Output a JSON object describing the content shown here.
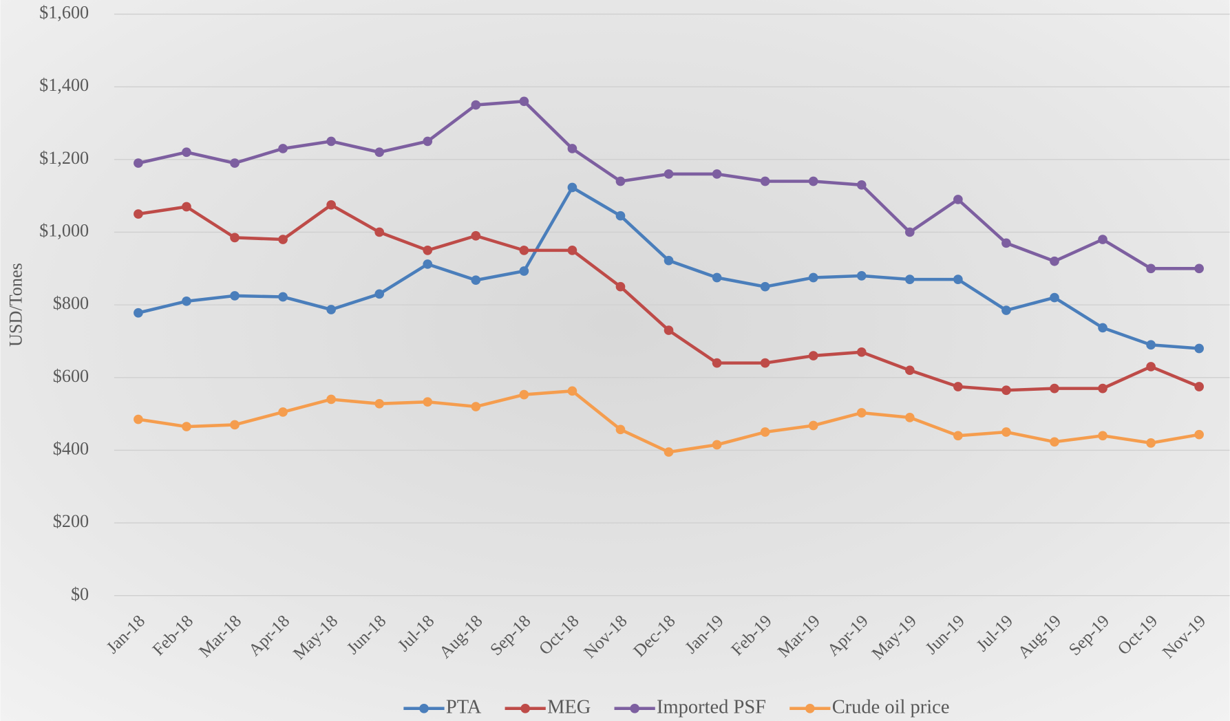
{
  "chart_data": {
    "type": "line",
    "y_label": "USD/Tones",
    "categories": [
      "Jan-18",
      "Feb-18",
      "Mar-18",
      "Apr-18",
      "May-18",
      "Jun-18",
      "Jul-18",
      "Aug-18",
      "Sep-18",
      "Oct-18",
      "Nov-18",
      "Dec-18",
      "Jan-19",
      "Feb-19",
      "Mar-19",
      "Apr-19",
      "May-19",
      "Jun-19",
      "Jul-19",
      "Aug-19",
      "Sep-19",
      "Oct-19",
      "Nov-19"
    ],
    "series": [
      {
        "name": "PTA",
        "color": "#4a7ebb",
        "values": [
          778,
          810,
          825,
          822,
          787,
          830,
          912,
          868,
          893,
          1123,
          1045,
          922,
          875,
          850,
          875,
          880,
          870,
          870,
          785,
          820,
          737,
          690,
          680
        ]
      },
      {
        "name": "MEG",
        "color": "#be4b48",
        "values": [
          1050,
          1070,
          985,
          980,
          1075,
          1000,
          950,
          990,
          950,
          950,
          850,
          730,
          640,
          640,
          660,
          670,
          620,
          575,
          565,
          570,
          570,
          630,
          575
        ]
      },
      {
        "name": "Imported PSF",
        "color": "#7d5fa0",
        "values": [
          1190,
          1220,
          1190,
          1230,
          1250,
          1220,
          1250,
          1350,
          1360,
          1230,
          1140,
          1160,
          1160,
          1140,
          1140,
          1130,
          1000,
          1090,
          970,
          920,
          980,
          900,
          900
        ]
      },
      {
        "name": "Crude oil price",
        "color": "#f59d4e",
        "values": [
          485,
          465,
          470,
          505,
          540,
          528,
          533,
          520,
          553,
          563,
          457,
          395,
          415,
          450,
          468,
          503,
          490,
          440,
          450,
          423,
          440,
          420,
          443
        ]
      }
    ],
    "ylim": [
      0,
      1600
    ],
    "yticks": [
      {
        "value": 0,
        "label": "$0"
      },
      {
        "value": 200,
        "label": "$200"
      },
      {
        "value": 400,
        "label": "$400"
      },
      {
        "value": 600,
        "label": "$600"
      },
      {
        "value": 800,
        "label": "$800"
      },
      {
        "value": 1000,
        "label": "$1,000"
      },
      {
        "value": 1200,
        "label": "$1,200"
      },
      {
        "value": 1400,
        "label": "$1,400"
      },
      {
        "value": 1600,
        "label": "$1,600"
      }
    ],
    "grid": true,
    "legend": "bottom"
  }
}
